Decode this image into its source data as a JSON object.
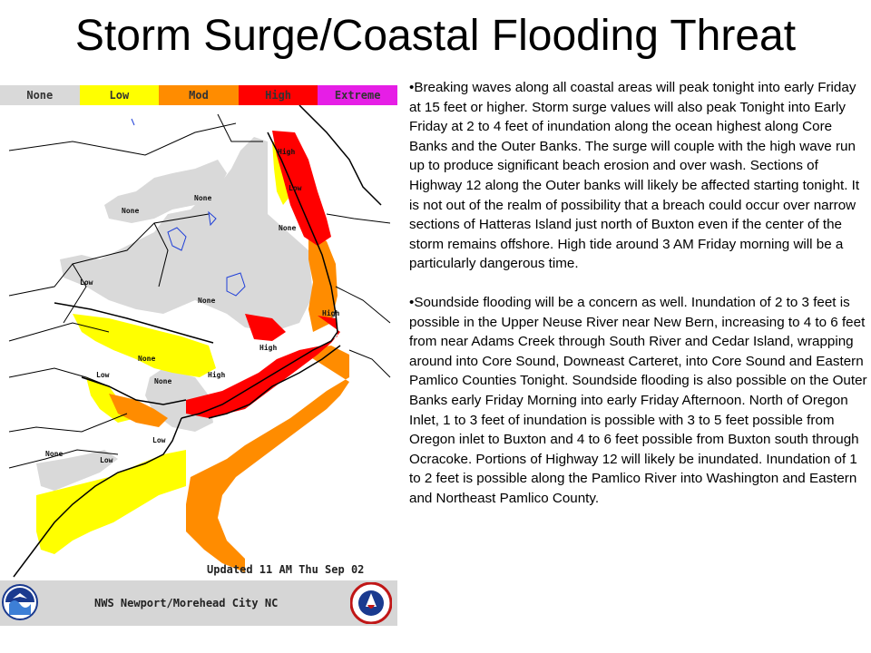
{
  "slide": {
    "title": "Storm Surge/Coastal Flooding Threat"
  },
  "map": {
    "legend": [
      {
        "label": "None",
        "color": "#d9d9d9"
      },
      {
        "label": "Low",
        "color": "#ffff00"
      },
      {
        "label": "Mod",
        "color": "#ff8c00"
      },
      {
        "label": "High",
        "color": "#ff0000"
      },
      {
        "label": "Extreme",
        "color": "#e61ee6"
      }
    ],
    "labels": {
      "high_1": "High",
      "low_1": "Low",
      "none_1": "None",
      "none_2": "None",
      "none_3": "None",
      "low_2": "Low",
      "none_4": "None",
      "high_2": "High",
      "high_3": "High",
      "none_5": "None",
      "low_3": "Low",
      "none_6": "None",
      "high_4": "High",
      "none_7": "None",
      "low_4": "Low",
      "low_5": "Low"
    },
    "updated": "Updated   11 AM Thu Sep 02",
    "office": "NWS Newport/Morehead City NC"
  },
  "text": {
    "paragraph_1": "•Breaking waves along all coastal areas will  peak tonight into early Friday at 15 feet or higher.  Storm surge values will also peak Tonight into Early Friday at  2 to 4 feet of inundation along the ocean highest along Core Banks  and the Outer  Banks.  The surge will couple with the high wave run up to produce significant beach erosion and over wash.  Sections of Highway 12 along the Outer banks will likely be affected starting tonight.  It is not out of the realm of possibility that a breach could occur over narrow sections of Hatteras Island just north of Buxton even if the center of the storm remains offshore.  High tide around 3 AM Friday morning will be a particularly dangerous time.",
    "paragraph_2": "•Soundside flooding will be a concern as well.  Inundation of 2 to 3 feet is possible in the Upper Neuse River near New Bern, increasing to 4 to 6 feet from near Adams Creek through South River and Cedar Island, wrapping around into Core Sound, Downeast Carteret, into Core Sound  and Eastern Pamlico Counties Tonight. Soundside flooding is also possible on the Outer Banks early Friday Morning into early Friday Afternoon.  North of Oregon Inlet, 1 to 3 feet of inundation is possible with 3 to 5 feet possible from Oregon inlet to Buxton and 4 to 6 feet possible from Buxton south through Ocracoke.  Portions of Highway 12 will likely be inundated. Inundation of 1 to 2 feet is possible along the Pamlico River into Washington and Eastern and Northeast Pamlico County."
  },
  "colors": {
    "none": "#d9d9d9",
    "low": "#ffff00",
    "mod": "#ff8c00",
    "high": "#ff0000",
    "extreme": "#e61ee6",
    "water": "#ffffff",
    "boundary": "#000000",
    "rivers": "#1f3fd8",
    "footer": "#d6d6d6"
  },
  "icons": [
    "noaa-logo-icon",
    "nws-logo-icon"
  ]
}
